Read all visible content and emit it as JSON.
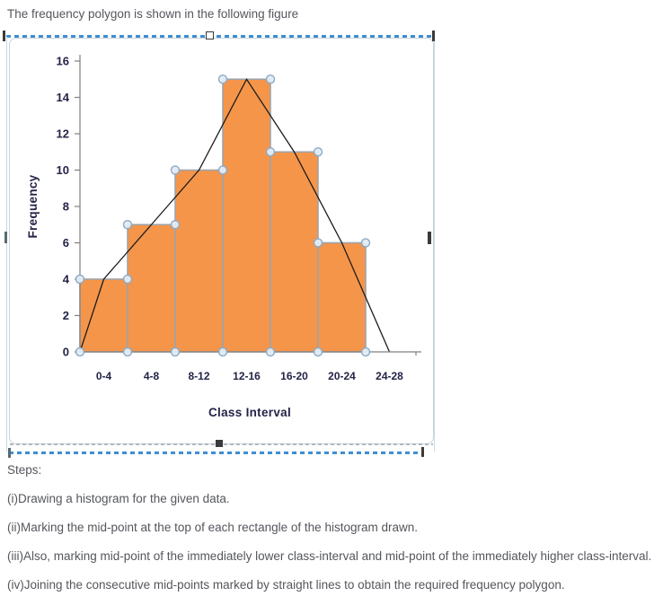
{
  "page": {
    "intro_text": "The frequency polygon is shown in the following figure",
    "steps": {
      "heading": "Steps:",
      "items": [
        "(i)Drawing a histogram for the given data.",
        "(ii)Marking the mid-point at the top of each rectangle of the histogram drawn.",
        "(iii)Also, marking mid-point of the immediately lower class-interval and mid-point of the immediately higher class-interval.",
        "(iv)Joining the consecutive mid-points marked by straight lines to obtain the required frequency polygon."
      ]
    }
  },
  "chart_data": {
    "type": "bar",
    "subtype": "histogram-with-frequency-polygon",
    "categories": [
      "0-4",
      "4-8",
      "8-12",
      "12-16",
      "16-20",
      "20-24",
      "24-28"
    ],
    "values": [
      4,
      7,
      10,
      15,
      11,
      6,
      0
    ],
    "polygon_points": [
      [
        0,
        0
      ],
      [
        2,
        4
      ],
      [
        6,
        7
      ],
      [
        10,
        10
      ],
      [
        14,
        15
      ],
      [
        18,
        11
      ],
      [
        22,
        6
      ],
      [
        26,
        0
      ]
    ],
    "title": "",
    "xlabel": "Class Interval",
    "ylabel": "Frequency",
    "ylim": [
      0,
      16
    ],
    "ytick_step": 2,
    "grid": false,
    "legend": "none",
    "bar_color": "#F5954A",
    "bar_border_color": "#9FA3A8",
    "line_color": "#1c1c1c",
    "axis_color": "#808080",
    "marker_border_color": "#8CABC6",
    "marker_fill_color": "#E4EDF6"
  },
  "selection": {
    "marquee_color": "#3D8ED2",
    "frame_color": "#C9D3DB",
    "handle_color": "#3A3A3A"
  }
}
